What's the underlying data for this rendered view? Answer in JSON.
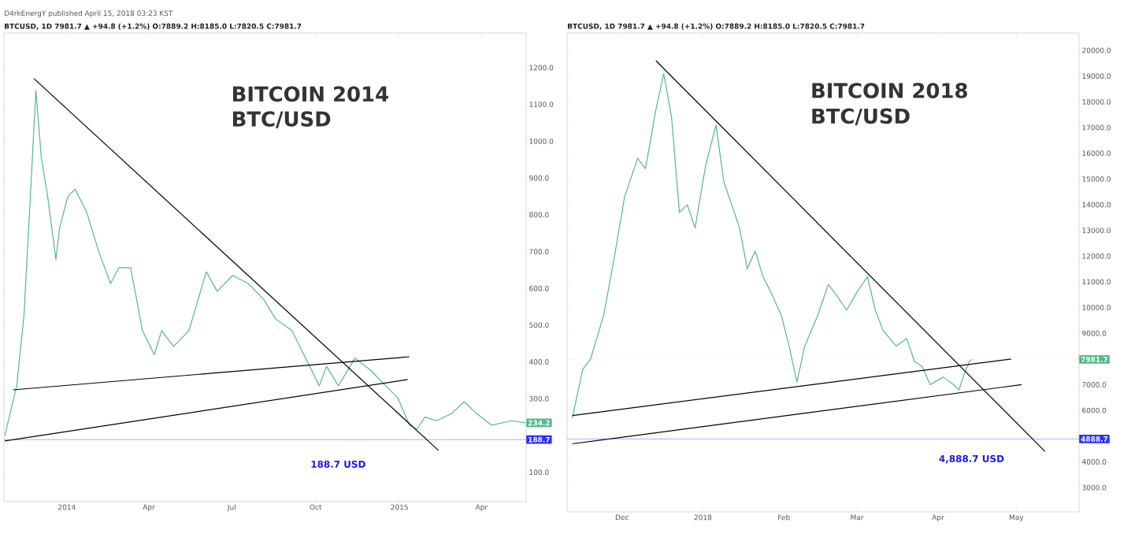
{
  "chart_data": [
    {
      "type": "line",
      "title": "D4rkEnergY published April 15, 2018 03:23 KST",
      "subtitle": "BTCUSD, 1D 7981.7 ▲ +94.8 (+1.2%) O:7889.2 H:8185.0 L:7820.5 C:7981.7",
      "annotations": [
        "BITCOIN 2014",
        "BTC/USD",
        "188.7 USD",
        {
          "text": "234.2",
          "x": "2015-05-19",
          "y": 234.2
        }
      ],
      "xlim": [
        "2013-10-24",
        "2015-05-20"
      ],
      "ylim": [
        20,
        1294
      ],
      "xticks": [
        {
          "value": "2014-01-01",
          "label": "2014"
        },
        {
          "value": "2014-04-01",
          "label": "Apr"
        },
        {
          "value": "2014-07-01",
          "label": "Jul"
        },
        {
          "value": "2014-10-01",
          "label": "Oct"
        },
        {
          "value": "2015-01-01",
          "label": "2015"
        },
        {
          "value": "2015-04-01",
          "label": "Apr"
        }
      ],
      "yticks": [
        {
          "value": 100,
          "label": "100.0"
        },
        {
          "value": 200,
          "label": null
        },
        {
          "value": 300,
          "label": "300.0"
        },
        {
          "value": 400,
          "label": "400.0"
        },
        {
          "value": 500,
          "label": "500.0"
        },
        {
          "value": 600,
          "label": "600.0"
        },
        {
          "value": 700,
          "label": "700.0"
        },
        {
          "value": 800,
          "label": "800.0"
        },
        {
          "value": 900,
          "label": "900.0"
        },
        {
          "value": 1000,
          "label": "1000.0"
        },
        {
          "value": 1100,
          "label": "1100.0"
        },
        {
          "value": 1200,
          "label": "1200.0"
        }
      ],
      "ref_lines": [
        {
          "axis": "y",
          "value": 188.7,
          "label": "188.7",
          "color": "#2d2dff",
          "line_style": "solid"
        }
      ],
      "marker": "none",
      "series": [
        {
          "color": "#53b987",
          "x": [
            "2013-10-25",
            "2013-11-07",
            "2013-11-15",
            "2013-11-22",
            "2013-11-28",
            "2013-12-04",
            "2013-12-11",
            "2013-12-20",
            "2013-12-24",
            "2014-01-02",
            "2014-01-10",
            "2014-01-23",
            "2014-02-05",
            "2014-02-18",
            "2014-02-27",
            "2014-03-12",
            "2014-03-25",
            "2014-04-07",
            "2014-04-15",
            "2014-04-28",
            "2014-05-15",
            "2014-06-03",
            "2014-06-15",
            "2014-07-02",
            "2014-07-19",
            "2014-08-05",
            "2014-08-18",
            "2014-09-05",
            "2014-09-22",
            "2014-10-05",
            "2014-10-13",
            "2014-10-26",
            "2014-11-13",
            "2014-11-30",
            "2014-12-17",
            "2014-12-30",
            "2015-01-12",
            "2015-01-20",
            "2015-01-29",
            "2015-02-11",
            "2015-02-28",
            "2015-03-13",
            "2015-03-26",
            "2015-04-12",
            "2015-05-04",
            "2015-05-19"
          ],
          "values": [
            200,
            335,
            527,
            849,
            1138,
            956,
            849,
            678,
            763,
            849,
            870,
            806,
            700,
            613,
            656,
            656,
            485,
            420,
            485,
            442,
            485,
            645,
            592,
            635,
            613,
            570,
            517,
            485,
            400,
            335,
            388,
            335,
            410,
            378,
            335,
            303,
            228,
            217,
            250,
            240,
            261,
            292,
            261,
            228,
            240,
            234.2
          ]
        },
        {
          "color": "#000000",
          "x": [
            "2013-11-26",
            "2015-02-13"
          ],
          "values": [
            1170,
            159
          ]
        },
        {
          "color": "#000000",
          "x": [
            "2013-10-25",
            "2015-01-10"
          ],
          "values": [
            185,
            352
          ]
        },
        {
          "color": "#000000",
          "x": [
            "2013-11-03",
            "2015-01-12"
          ],
          "values": [
            324,
            414
          ]
        }
      ]
    },
    {
      "type": "line",
      "subtitle": "BTCUSD, 1D 7981.7 ▲ +94.8 (+1.2%) O:7889.2 H:8185.0 L:7820.5 C:7981.7",
      "annotations": [
        "BITCOIN 2018",
        "BTC/USD",
        "4,888.7 USD"
      ],
      "xlim": [
        "2017-11-10",
        "2018-05-25"
      ],
      "ylim": [
        2052,
        20674
      ],
      "xticks": [
        {
          "value": "2017-12-01",
          "label": "Dec"
        },
        {
          "value": "2018-01-01",
          "label": "2018"
        },
        {
          "value": "2018-02-01",
          "label": "Feb"
        },
        {
          "value": "2018-03-01",
          "label": "Mar"
        },
        {
          "value": "2018-04-01",
          "label": "Apr"
        },
        {
          "value": "2018-05-01",
          "label": "May"
        }
      ],
      "yticks": [
        {
          "value": 3000,
          "label": "3000.0"
        },
        {
          "value": 4000,
          "label": "4000.0"
        },
        {
          "value": 5000,
          "label": null
        },
        {
          "value": 6000,
          "label": "6000.0"
        },
        {
          "value": 7000,
          "label": "7000.0"
        },
        {
          "value": 8000,
          "label": null
        },
        {
          "value": 9000,
          "label": "9000.0"
        },
        {
          "value": 10000,
          "label": "10000.0"
        },
        {
          "value": 11000,
          "label": "11000.0"
        },
        {
          "value": 12000,
          "label": "12000.0"
        },
        {
          "value": 13000,
          "label": "13000.0"
        },
        {
          "value": 14000,
          "label": "14000.0"
        },
        {
          "value": 15000,
          "label": "15000.0"
        },
        {
          "value": 16000,
          "label": "16000.0"
        },
        {
          "value": 17000,
          "label": "17000.0"
        },
        {
          "value": 18000,
          "label": "18000.0"
        },
        {
          "value": 19000,
          "label": "19000.0"
        },
        {
          "value": 20000,
          "label": "20000.0"
        }
      ],
      "ref_lines": [
        {
          "axis": "y",
          "value": 7981.7,
          "label": "7981.7",
          "color": "#53b987",
          "line_style": "dotted"
        },
        {
          "axis": "y",
          "value": 4888.7,
          "label": "4888.7",
          "color": "#2d2dff",
          "line_style": "solid"
        }
      ],
      "marker": "none",
      "series": [
        {
          "color": "#53b987",
          "x": [
            "2017-11-12",
            "2017-11-16",
            "2017-11-19",
            "2017-11-24",
            "2017-11-28",
            "2017-12-02",
            "2017-12-07",
            "2017-12-10",
            "2017-12-14",
            "2017-12-17",
            "2017-12-20",
            "2017-12-23",
            "2017-12-26",
            "2017-12-29",
            "2018-01-02",
            "2018-01-06",
            "2018-01-09",
            "2018-01-12",
            "2018-01-15",
            "2018-01-18",
            "2018-01-21",
            "2018-01-24",
            "2018-01-27",
            "2018-01-31",
            "2018-02-03",
            "2018-02-06",
            "2018-02-09",
            "2018-02-14",
            "2018-02-18",
            "2018-02-21",
            "2018-02-25",
            "2018-03-01",
            "2018-03-05",
            "2018-03-08",
            "2018-03-11",
            "2018-03-16",
            "2018-03-20",
            "2018-03-23",
            "2018-03-26",
            "2018-03-29",
            "2018-04-03",
            "2018-04-07",
            "2018-04-09",
            "2018-04-11",
            "2018-04-13",
            "2018-04-14"
          ],
          "values": [
            5700,
            7600,
            8000,
            9700,
            11900,
            14300,
            15800,
            15400,
            17700,
            19100,
            17400,
            13700,
            14000,
            13100,
            15500,
            17100,
            14900,
            14000,
            13100,
            11500,
            12200,
            11200,
            10600,
            9700,
            8500,
            7100,
            8500,
            9700,
            10900,
            10500,
            9900,
            10600,
            11200,
            9900,
            9100,
            8500,
            8800,
            7900,
            7700,
            7000,
            7300,
            7000,
            6800,
            7400,
            7900,
            7981.7
          ]
        },
        {
          "color": "#000000",
          "x": [
            "2017-12-14",
            "2018-05-12"
          ],
          "values": [
            19600,
            4400
          ]
        },
        {
          "color": "#000000",
          "x": [
            "2017-11-12",
            "2018-05-03"
          ],
          "values": [
            4700,
            7000
          ]
        },
        {
          "color": "#000000",
          "x": [
            "2017-11-12",
            "2018-04-29"
          ],
          "values": [
            5800,
            8000
          ]
        }
      ]
    }
  ]
}
